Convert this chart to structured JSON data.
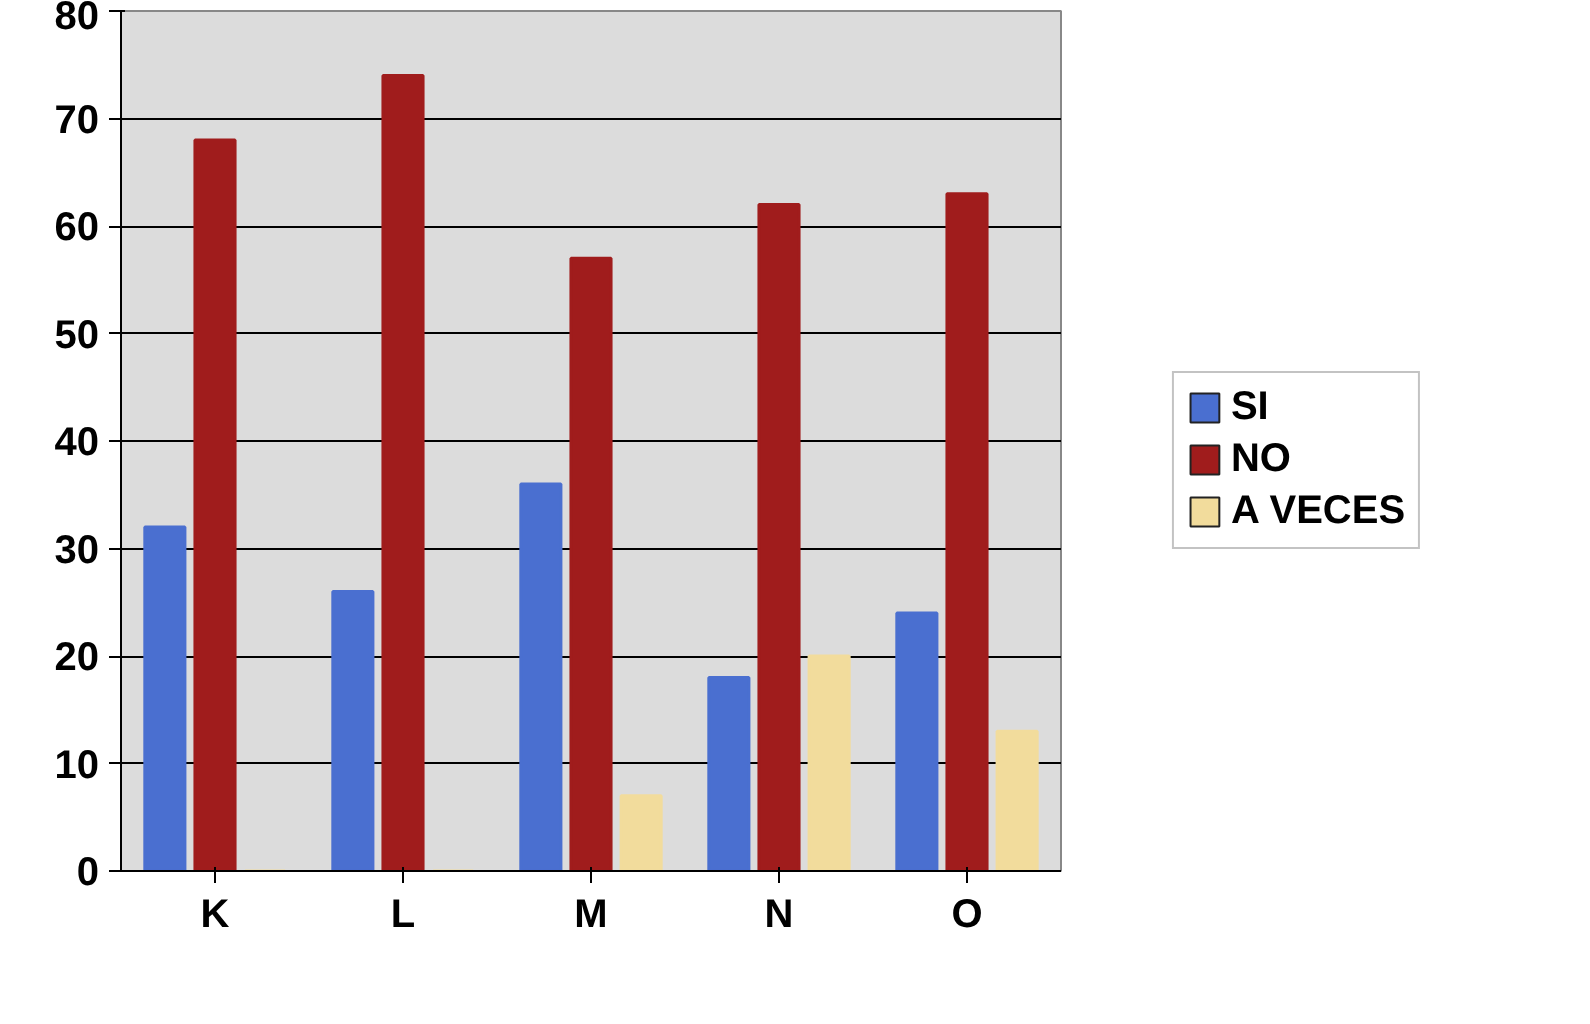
{
  "chart_data": {
    "type": "bar",
    "categories": [
      "K",
      "L",
      "M",
      "N",
      "O"
    ],
    "series": [
      {
        "name": "SI",
        "color": "#4a6fd0",
        "values": [
          32,
          26,
          36,
          18,
          24
        ]
      },
      {
        "name": "NO",
        "color": "#a01c1c",
        "values": [
          68,
          74,
          57,
          62,
          63
        ]
      },
      {
        "name": "A VECES",
        "color": "#f2dc9c",
        "values": [
          0,
          0,
          7,
          20,
          13
        ]
      }
    ],
    "ylim": [
      0,
      80
    ],
    "yticks": [
      0,
      10,
      20,
      30,
      40,
      50,
      60,
      70,
      80
    ],
    "grid": "y",
    "legend": "right"
  }
}
